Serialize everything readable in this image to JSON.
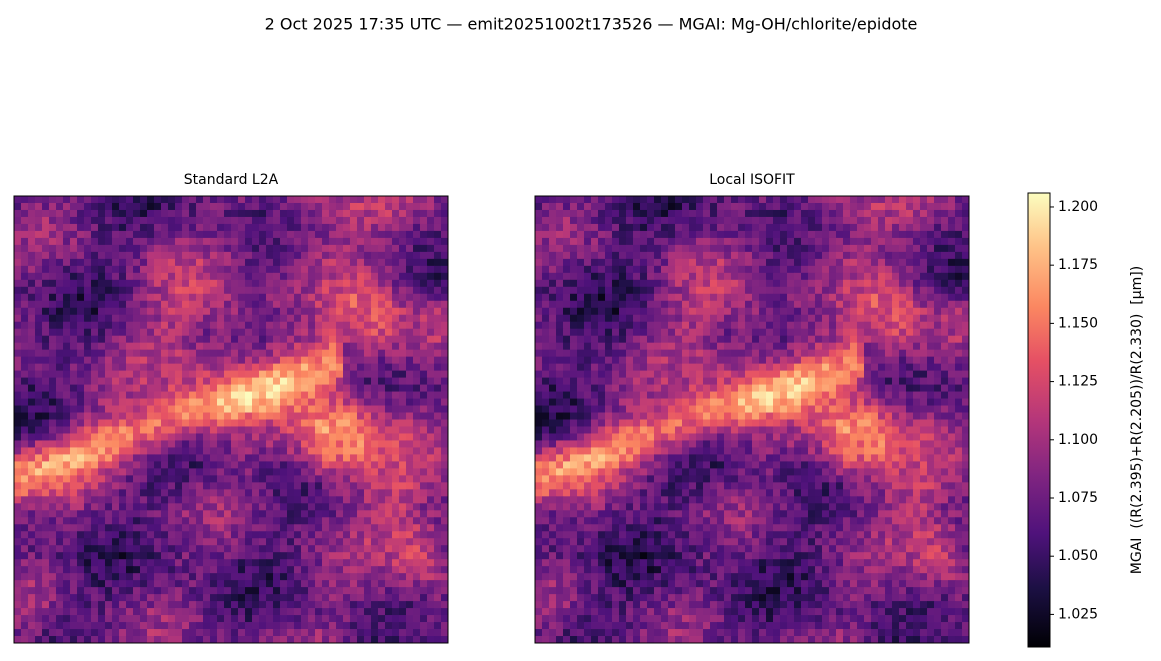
{
  "chart_data": {
    "type": "image",
    "title": "2 Oct 2025 17:35 UTC — emit20251002t173526 — MGAI: Mg-OH/chlorite/epidote",
    "colormap": "magma",
    "panels": [
      {
        "title": "Standard L2A"
      },
      {
        "title": "Local ISOFIT"
      }
    ],
    "colorbar": {
      "label": "MGAI  ((R(2.395)+R(2.205))/R(2.330)  [μm])",
      "lim": [
        1.011,
        1.206
      ],
      "ticks": [
        1.025,
        {
          "value": 1.05,
          "label": "1.050"
        },
        1.075,
        {
          "value": 1.1,
          "label": "1.100"
        },
        1.125,
        {
          "value": 1.15,
          "label": "1.150"
        },
        1.175,
        {
          "value": 1.2,
          "label": "1.200"
        }
      ]
    }
  }
}
